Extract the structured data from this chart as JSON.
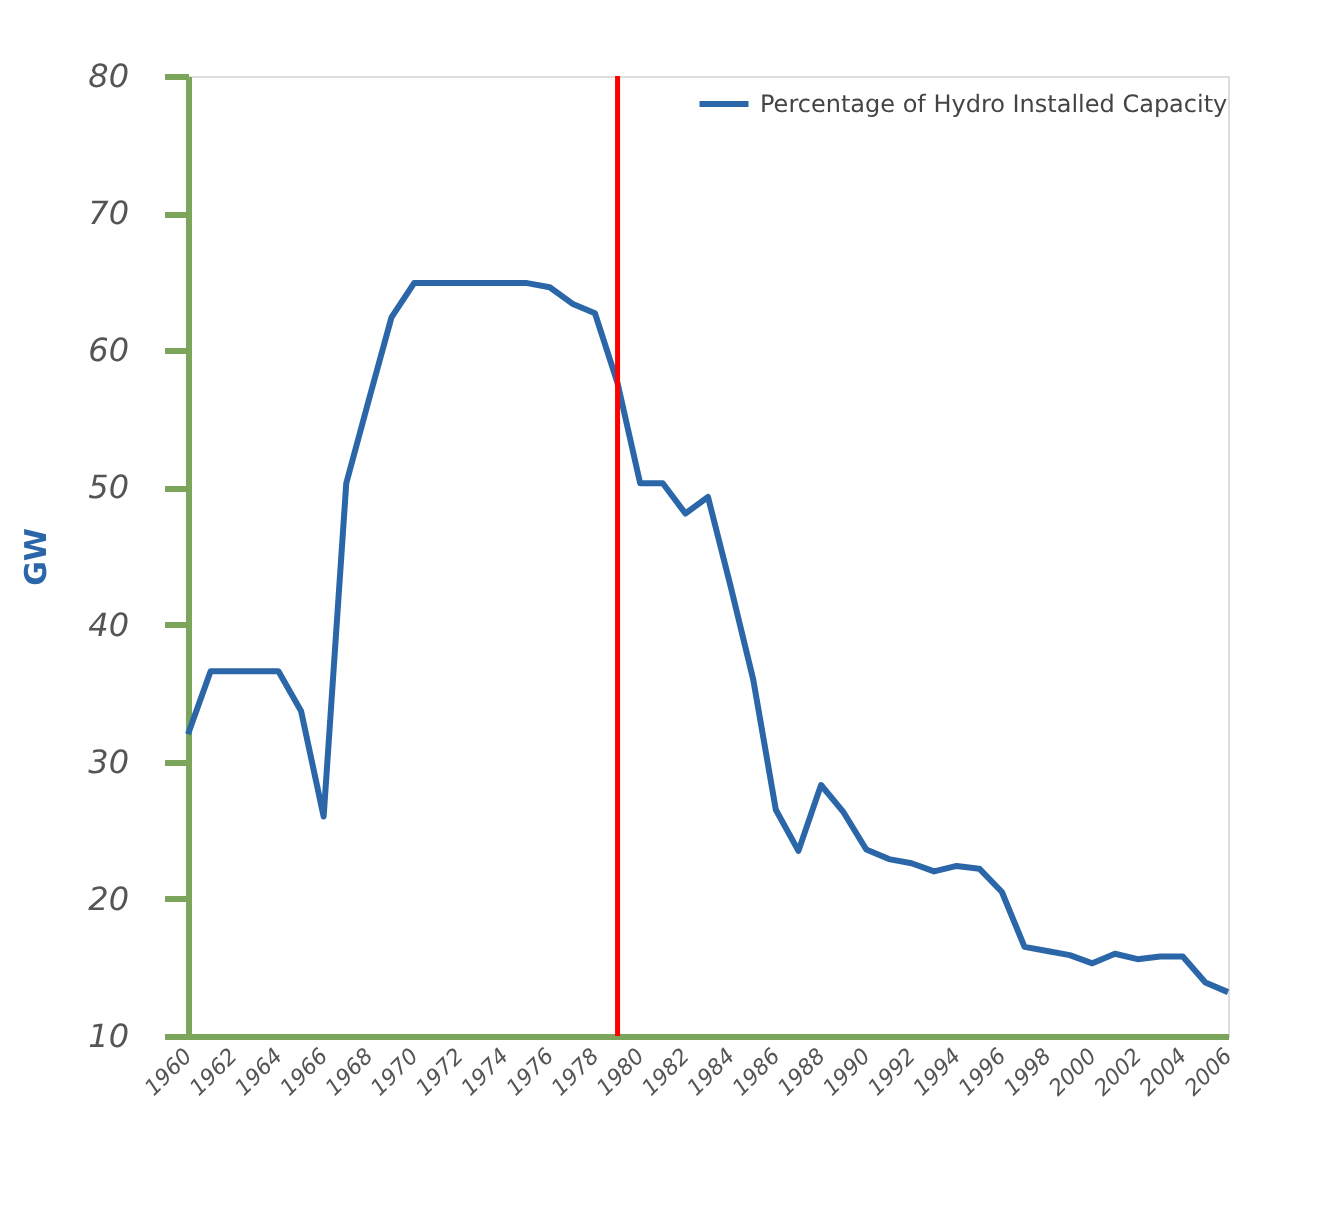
{
  "chart_data": {
    "type": "line",
    "ylabel": "GW",
    "legend": "top right",
    "grid": false,
    "x": [
      1960,
      1961,
      1962,
      1963,
      1964,
      1965,
      1966,
      1967,
      1968,
      1969,
      1970,
      1971,
      1972,
      1973,
      1974,
      1975,
      1976,
      1977,
      1978,
      1979,
      1980,
      1981,
      1982,
      1983,
      1984,
      1985,
      1986,
      1987,
      1988,
      1989,
      1990,
      1991,
      1992,
      1993,
      1994,
      1995,
      1996,
      1997,
      1998,
      1999,
      2000,
      2001,
      2002,
      2003,
      2004,
      2005,
      2006
    ],
    "series": [
      {
        "name": "Percentage of Hydro Installed Capacity",
        "color": "#2b67a8",
        "values": [
          32,
          36.6,
          36.6,
          36.6,
          36.6,
          33.7,
          26,
          50.3,
          56.4,
          62.4,
          64.9,
          64.9,
          64.9,
          64.9,
          64.9,
          64.9,
          64.6,
          63.4,
          62.7,
          57.6,
          50.3,
          50.3,
          48.1,
          49.3,
          42.8,
          36,
          26.5,
          23.5,
          28.3,
          26.3,
          23.6,
          22.9,
          22.6,
          22,
          22.4,
          22.2,
          20.5,
          16.5,
          16.2,
          15.9,
          15.3,
          16,
          15.6,
          15.8,
          15.8,
          13.9,
          13.2
        ]
      }
    ],
    "xlim": [
      1960,
      2006
    ],
    "xticks": [
      1960,
      1962,
      1964,
      1966,
      1968,
      1970,
      1972,
      1974,
      1976,
      1978,
      1980,
      1982,
      1984,
      1986,
      1988,
      1990,
      1992,
      1994,
      1996,
      1998,
      2000,
      2002,
      2004,
      2006
    ],
    "ylim": [
      10,
      80
    ],
    "yticks": [
      10,
      20,
      30,
      40,
      50,
      60,
      70,
      80
    ],
    "ref_lines": [
      {
        "axis": "x",
        "value": 1979,
        "label": null,
        "color": "#ff0000"
      }
    ]
  }
}
